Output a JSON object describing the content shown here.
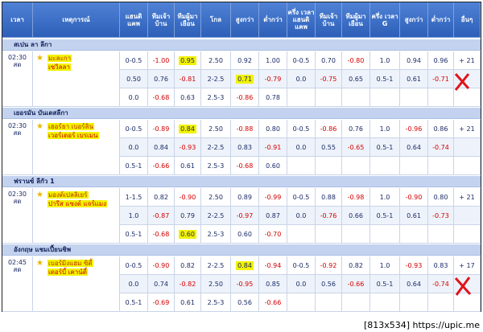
{
  "header": {
    "columns": [
      "เวลา",
      "เหตุการณ์",
      "แฮนดิ แคพ",
      "ทีมเจ้า บ้าน",
      "ทีมผู้มา เยือน",
      "โกล",
      "สูงกว่า",
      "ต่ำกว่า",
      "ครึ่ง เวลา แฮนดิ แคพ",
      "ทีมเจ้า บ้าน",
      "ทีมผู้มา เยือน",
      "ครึ่ง เวลา G",
      "สูงกว่า",
      "ต่ำกว่า",
      "อื่นๆ"
    ]
  },
  "leagues": [
    {
      "name": "สเปน ลา ลีกา",
      "time": "02:30",
      "status": "สด",
      "home": "มะละกา",
      "away": "เซวิลลา",
      "more": "+ 21",
      "rows": [
        {
          "ft": [
            "0-0.5",
            "-1.00",
            "0.95",
            "2.50",
            "0.92",
            "1.00"
          ],
          "ht": [
            "0-0.5",
            "0.70",
            "-0.80",
            "1.0",
            "0.94",
            "0.96"
          ]
        },
        {
          "ft": [
            "0.50",
            "0.76",
            "-0.81",
            "2-2.5",
            "0.71",
            "-0.79"
          ],
          "ht": [
            "0.0",
            "-0.75",
            "0.65",
            "0.5-1",
            "0.61",
            "-0.71"
          ]
        },
        {
          "ft": [
            "0.0",
            "-0.68",
            "0.63",
            "2.5-3",
            "-0.86",
            "0.78"
          ]
        }
      ]
    },
    {
      "name": "เยอรมัน บันเดสลีกา",
      "time": "02:30",
      "status": "สด",
      "home": "เฮอร์ธา เบอร์ลิน",
      "away": "เวอร์เดอร์ เบรเมน",
      "more": "+ 21",
      "rows": [
        {
          "ft": [
            "0-0.5",
            "-0.89",
            "0.84",
            "2.50",
            "-0.88",
            "0.80"
          ],
          "ht": [
            "0-0.5",
            "-0.86",
            "0.76",
            "1.0",
            "-0.96",
            "0.86"
          ]
        },
        {
          "ft": [
            "0.0",
            "0.84",
            "-0.93",
            "2-2.5",
            "0.83",
            "-0.91"
          ],
          "ht": [
            "0.0",
            "0.55",
            "-0.65",
            "0.5-1",
            "0.64",
            "-0.74"
          ]
        },
        {
          "ft": [
            "0.5-1",
            "-0.66",
            "0.61",
            "2.5-3",
            "-0.68",
            "0.60"
          ]
        }
      ]
    },
    {
      "name": "ฟรานซ์ ลีกัว 1",
      "time": "02:30",
      "status": "สด",
      "home": "มองต์เปลลิเยร์",
      "away": "ปารีส แซงต์ แจร์แมง",
      "more": "+ 21",
      "rows": [
        {
          "ft": [
            "1-1.5",
            "0.82",
            "-0.90",
            "2.50",
            "0.89",
            "-0.99"
          ],
          "ht": [
            "0-0.5",
            "0.88",
            "-0.98",
            "1.0",
            "-0.90",
            "0.80"
          ]
        },
        {
          "ft": [
            "1.0",
            "-0.87",
            "0.79",
            "2-2.5",
            "-0.97",
            "0.87"
          ],
          "ht": [
            "0.0",
            "-0.76",
            "0.66",
            "0.5-1",
            "0.61",
            "-0.73"
          ]
        },
        {
          "ft": [
            "0.5-1",
            "-0.68",
            "0.60",
            "2.5-3",
            "0.60",
            "-0.70"
          ]
        }
      ]
    },
    {
      "name": "อังกฤษ แชมเปี้ยนชิพ",
      "time": "02:45",
      "status": "สด",
      "home": "เบอร์มิงแฮม ซิตี้",
      "away": "เดอร์บี้ เคาน์ตี้",
      "more": "+ 17",
      "rows": [
        {
          "ft": [
            "0-0.5",
            "-0.90",
            "0.82",
            "2-2.5",
            "0.84",
            "-0.94"
          ],
          "ht": [
            "0-0.5",
            "-0.92",
            "0.82",
            "1.0",
            "-0.93",
            "0.83"
          ]
        },
        {
          "ft": [
            "0.0",
            "0.74",
            "-0.82",
            "2.50",
            "-0.95",
            "0.85"
          ],
          "ht": [
            "0.0",
            "0.56",
            "-0.66",
            "0.5-1",
            "0.64",
            "-0.74"
          ]
        },
        {
          "ft": [
            "0.5-1",
            "-0.69",
            "0.61",
            "2.5-3",
            "0.56",
            "-0.66"
          ]
        }
      ]
    }
  ],
  "footer": "[813x534] https://upic.me"
}
